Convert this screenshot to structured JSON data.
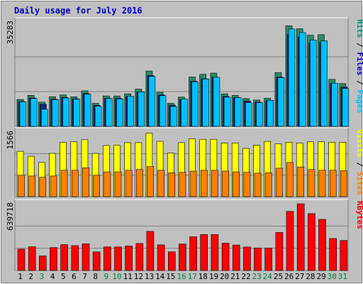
{
  "chart_data": {
    "type": "bar",
    "title": "Daily usage for July 2016",
    "categories": [
      "1",
      "2",
      "3",
      "4",
      "5",
      "6",
      "7",
      "8",
      "9",
      "10",
      "11",
      "12",
      "13",
      "14",
      "15",
      "16",
      "17",
      "18",
      "19",
      "20",
      "21",
      "22",
      "23",
      "24",
      "25",
      "26",
      "27",
      "28",
      "29",
      "30",
      "31"
    ],
    "weekend_days": [
      "3",
      "9",
      "10",
      "16",
      "17",
      "23",
      "24",
      "30",
      "31"
    ],
    "panels": [
      {
        "id": "hits",
        "max_label": "35283",
        "ymax": 35283,
        "legend": [
          {
            "text": "Pages",
            "color": "#00bfff"
          },
          {
            "text": "Files",
            "color": "#0000c0"
          },
          {
            "text": "Hits",
            "color": "#009080"
          }
        ],
        "series": [
          {
            "name": "Hits",
            "color": "#2a8a6a",
            "values": [
              9100,
              10500,
              8200,
              10000,
              10600,
              10000,
              12000,
              7800,
              10300,
              10300,
              11000,
              12600,
              18700,
              11500,
              7800,
              9900,
              16700,
              17600,
              18000,
              11000,
              10500,
              9400,
              8900,
              9500,
              18200,
              34000,
              33000,
              30800,
              31000,
              15900,
              14500
            ]
          },
          {
            "name": "Files",
            "color": "#0a2a7a",
            "values": [
              8400,
              9600,
              7500,
              9200,
              9800,
              9300,
              11100,
              7100,
              9500,
              9500,
              10100,
              11600,
              17200,
              10600,
              7200,
              9100,
              15300,
              16100,
              16600,
              10100,
              9700,
              8600,
              8200,
              8700,
              16700,
              31000,
              30200,
              28200,
              28400,
              14500,
              13300
            ]
          },
          {
            "name": "Pages",
            "color": "#00bfff",
            "values": [
              8300,
              9400,
              5800,
              9000,
              9600,
              9200,
              10900,
              6800,
              9400,
              9300,
              10200,
              11700,
              16900,
              10400,
              6700,
              9200,
              15100,
              16000,
              16600,
              9900,
              9700,
              8000,
              8000,
              8800,
              16500,
              32900,
              31700,
              29200,
              28900,
              14600,
              12800
            ]
          }
        ]
      },
      {
        "id": "visits",
        "max_label": "1566",
        "ymax": 1566,
        "legend": [
          {
            "text": "Sites",
            "color": "#ff8000"
          },
          {
            "text": "Visits",
            "color": "#ffff00"
          }
        ],
        "series": [
          {
            "name": "Visits",
            "color": "#ffff00",
            "values": [
              1100,
              980,
              830,
              1050,
              1320,
              1330,
              1380,
              1050,
              1240,
              1250,
              1310,
              1310,
              1540,
              1340,
              1060,
              1310,
              1400,
              1390,
              1390,
              1300,
              1300,
              1170,
              1250,
              1340,
              1280,
              1320,
              1300,
              1330,
              1330,
              1320,
              1320
            ]
          },
          {
            "name": "Sites",
            "color": "#ff8000",
            "values": [
              520,
              500,
              470,
              500,
              640,
              640,
              700,
              520,
              600,
              600,
              640,
              660,
              730,
              640,
              580,
              590,
              620,
              640,
              640,
              620,
              600,
              590,
              570,
              580,
              690,
              830,
              720,
              660,
              640,
              640,
              630
            ]
          }
        ]
      },
      {
        "id": "kbytes",
        "max_label": "639718",
        "ymax": 639718,
        "legend": [
          {
            "text": "KBytes",
            "color": "#ff0000"
          }
        ],
        "series": [
          {
            "name": "KBytes",
            "color": "#ff0000",
            "values": [
              205000,
              228000,
              140000,
              220000,
              248000,
              238000,
              256000,
              178000,
              226000,
              226000,
              235000,
              259000,
              375000,
              246000,
              179000,
              254000,
              323000,
              345000,
              345000,
              262000,
              244000,
              225000,
              216000,
              216000,
              365000,
              567000,
              639718,
              545000,
              490000,
              307000,
              288000
            ]
          }
        ]
      }
    ]
  }
}
